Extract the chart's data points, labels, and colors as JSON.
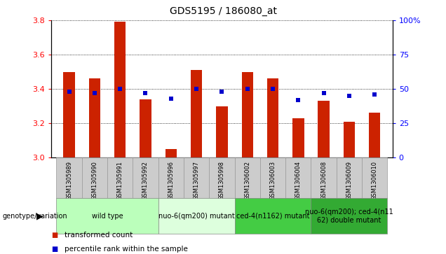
{
  "title": "GDS5195 / 186080_at",
  "samples": [
    "GSM1305989",
    "GSM1305990",
    "GSM1305991",
    "GSM1305992",
    "GSM1305996",
    "GSM1305997",
    "GSM1305998",
    "GSM1306002",
    "GSM1306003",
    "GSM1306004",
    "GSM1306008",
    "GSM1306009",
    "GSM1306010"
  ],
  "transformed_counts": [
    3.5,
    3.46,
    3.79,
    3.34,
    3.05,
    3.51,
    3.3,
    3.5,
    3.46,
    3.23,
    3.33,
    3.21,
    3.26
  ],
  "percentile_ranks": [
    48,
    47,
    50,
    47,
    43,
    50,
    48,
    50,
    50,
    42,
    47,
    45,
    46
  ],
  "ylim": [
    3.0,
    3.8
  ],
  "y2lim": [
    0,
    100
  ],
  "y_ticks": [
    3.0,
    3.2,
    3.4,
    3.6,
    3.8
  ],
  "y2_ticks": [
    0,
    25,
    50,
    75,
    100
  ],
  "y2_tick_labels": [
    "0",
    "25",
    "50",
    "75",
    "100%"
  ],
  "bar_color": "#cc2200",
  "scatter_color": "#0000cc",
  "groups": [
    {
      "label": "wild type",
      "indices": [
        0,
        1,
        2,
        3
      ],
      "color": "#bbffbb"
    },
    {
      "label": "nuo-6(qm200) mutant",
      "indices": [
        4,
        5,
        6
      ],
      "color": "#ddffdd"
    },
    {
      "label": "ced-4(n1162) mutant",
      "indices": [
        7,
        8,
        9
      ],
      "color": "#44cc44"
    },
    {
      "label": "nuo-6(qm200); ced-4(n11\n62) double mutant",
      "indices": [
        10,
        11,
        12
      ],
      "color": "#33aa33"
    }
  ],
  "genotype_label": "genotype/variation",
  "legend_items": [
    {
      "color": "#cc2200",
      "label": "transformed count"
    },
    {
      "color": "#0000cc",
      "label": "percentile rank within the sample"
    }
  ],
  "sample_box_color": "#cccccc",
  "sample_box_edge": "#999999",
  "bar_width": 0.45
}
